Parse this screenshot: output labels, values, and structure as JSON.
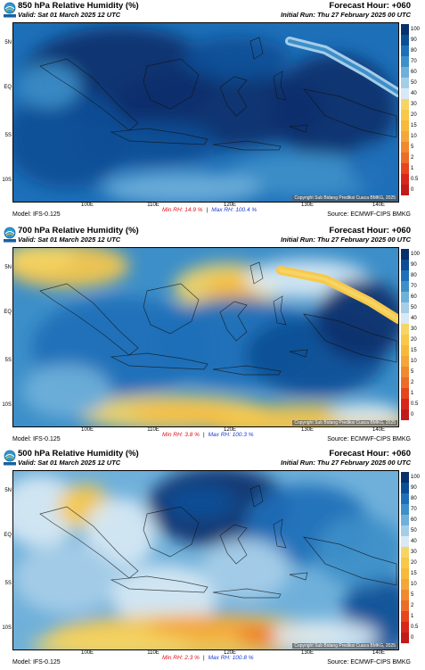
{
  "colors": [
    "#08306b",
    "#0b4e96",
    "#1d6fb8",
    "#3d8fc9",
    "#6fb0da",
    "#a6cde8",
    "#d8e9f4",
    "#f5d565",
    "#f9c84a",
    "#f7b93a",
    "#f4a63a",
    "#ef8a30",
    "#ec6d27",
    "#e6451d",
    "#d8261a",
    "#c21a1a"
  ],
  "colorbar_labels": [
    "100",
    "90",
    "80",
    "70",
    "60",
    "50",
    "40",
    "30",
    "20",
    "15",
    "10",
    "5",
    "2",
    "1",
    "0.5",
    "0"
  ],
  "lat_labels": [
    "5N",
    "EQ",
    "5S",
    "10S"
  ],
  "lon_labels": [
    "100E",
    "110E",
    "120E",
    "130E",
    "140E"
  ],
  "panels": [
    {
      "logo_icon": "bmkg-logo-icon",
      "title": "850 hPa Relative Humidity (%)",
      "valid": "Valid: Sat 01 March 2025 12 UTC",
      "forecast_hour": "Forecast Hour: +060",
      "initial_run": "Initial Run: Thu 27 February 2025 00 UTC",
      "model": "Model: IFS-0.125",
      "min_rh": "Min RH:  14.9 %",
      "separator": "|",
      "max_rh": "Max RH: 100.4 %",
      "source": "Source: ECMWF-CIPS BMKG",
      "copyright": "Copyright Sub Bidang Prediksi Cuaca BMKG, 2025",
      "chart_data": {
        "type": "heatmap",
        "variable": "850 hPa Relative Humidity (%)",
        "lon_range": [
          "~94E",
          "~142E"
        ],
        "lat_range": [
          "~12S",
          "~7N"
        ],
        "min_value": 14.9,
        "max_value": 100.4,
        "dominant_range": "60–100"
      }
    },
    {
      "logo_icon": "bmkg-logo-icon",
      "title": "700 hPa Relative Humidity (%)",
      "valid": "Valid: Sat 01 March 2025 12 UTC",
      "forecast_hour": "Forecast Hour: +060",
      "initial_run": "Initial Run: Thu 27 February 2025 00 UTC",
      "model": "Model: IFS-0.125",
      "min_rh": "Min RH:  3.8 %",
      "separator": "|",
      "max_rh": "Max RH: 100.3 %",
      "source": "Source: ECMWF-CIPS BMKG",
      "copyright": "Copyright Sub Bidang Prediksi Cuaca BMKG, 2025",
      "chart_data": {
        "type": "heatmap",
        "variable": "700 hPa Relative Humidity (%)",
        "lon_range": [
          "~94E",
          "~142E"
        ],
        "lat_range": [
          "~12S",
          "~7N"
        ],
        "min_value": 3.8,
        "max_value": 100.3,
        "dominant_range": "50–90"
      }
    },
    {
      "logo_icon": "bmkg-logo-icon",
      "title": "500 hPa Relative Humidity (%)",
      "valid": "Valid: Sat 01 March 2025 12 UTC",
      "forecast_hour": "Forecast Hour: +060",
      "initial_run": "Initial Run: Thu 27 February 2025 00 UTC",
      "model": "Model: IFS-0.125",
      "min_rh": "Min RH:  2.3 %",
      "separator": "|",
      "max_rh": "Max RH: 100.8 %",
      "source": "Source: ECMWF-CIPS BMKG",
      "copyright": "Copyright Sub Bidang Prediksi Cuaca BMKG, 2025",
      "chart_data": {
        "type": "heatmap",
        "variable": "500 hPa Relative Humidity (%)",
        "lon_range": [
          "~94E",
          "~142E"
        ],
        "lat_range": [
          "~12S",
          "~7N"
        ],
        "min_value": 2.3,
        "max_value": 100.8,
        "dominant_range": "30–80"
      }
    }
  ]
}
